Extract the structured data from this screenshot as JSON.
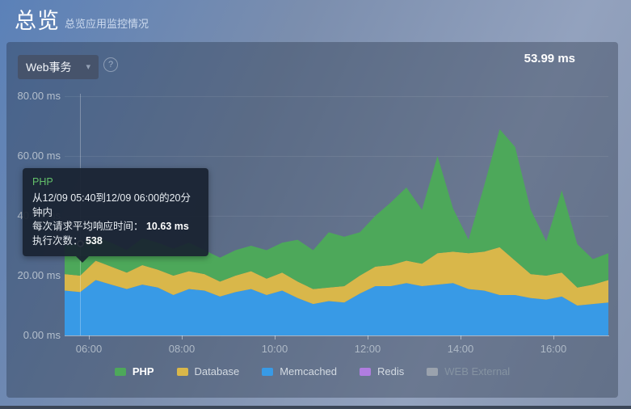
{
  "header": {
    "title": "总览",
    "subtitle": "总览应用监控情况"
  },
  "toolbar": {
    "dropdown_label": "Web事务",
    "dropdown_caret": "▾",
    "help_symbol": "?",
    "current_value": "53.99 ms"
  },
  "tooltip": {
    "series_label": "PHP",
    "range_text": "从12/09 05:40到12/09 06:00的20分钟内",
    "resp_label": "每次请求平均响应时间： ",
    "resp_value": "10.63 ms",
    "count_label": "执行次数： ",
    "count_value": "538"
  },
  "chart_data": {
    "type": "area",
    "stacked": true,
    "unit": "ms",
    "ylim": [
      0,
      80
    ],
    "grid": "horizontal",
    "legend_position": "bottom",
    "y_tick_labels": [
      "0.00 ms",
      "20.00 ms",
      "40.00 ms",
      "60.00 ms",
      "80.00 ms"
    ],
    "x_tick_labels": [
      "06:00",
      "08:00",
      "10:00",
      "12:00",
      "14:00",
      "16:00"
    ],
    "x_times": [
      "05:30",
      "05:50",
      "06:10",
      "06:30",
      "06:50",
      "07:10",
      "07:30",
      "07:50",
      "08:10",
      "08:30",
      "08:50",
      "09:10",
      "09:30",
      "09:50",
      "10:10",
      "10:30",
      "10:50",
      "11:10",
      "11:30",
      "11:50",
      "12:10",
      "12:30",
      "12:50",
      "13:10",
      "13:30",
      "13:50",
      "14:10",
      "14:30",
      "14:50",
      "15:10",
      "15:30",
      "15:50",
      "16:10",
      "16:30",
      "16:50",
      "17:10"
    ],
    "stack_order": [
      "Memcached",
      "Database",
      "PHP"
    ],
    "series": [
      {
        "name": "PHP",
        "color": "#4da85a",
        "values": [
          9.5,
          10.63,
          8,
          8,
          7.5,
          9,
          9,
          9,
          9.5,
          8,
          8,
          8.5,
          8.5,
          9.5,
          10,
          14,
          13,
          18.5,
          16.5,
          14.5,
          17,
          21,
          24.5,
          18,
          32.5,
          14.5,
          4.5,
          22,
          39.5,
          38,
          21.5,
          11.5,
          27.5,
          14.5,
          8.5,
          9
        ]
      },
      {
        "name": "Database",
        "color": "#d9b74a",
        "values": [
          5.5,
          5.5,
          6.5,
          6,
          5.5,
          6.5,
          6,
          6.5,
          6,
          5.5,
          5,
          5.5,
          6,
          5.5,
          6,
          5.5,
          5,
          4.5,
          5.5,
          6,
          6.5,
          7,
          7.5,
          7.5,
          10.5,
          10.5,
          12,
          13,
          16,
          11.5,
          8,
          8,
          8,
          6,
          6.5,
          7.5
        ]
      },
      {
        "name": "Memcached",
        "color": "#389ae6",
        "values": [
          15,
          14.5,
          18.5,
          17,
          15.5,
          17,
          16,
          13.5,
          15.5,
          15,
          13,
          14.5,
          15.5,
          13.5,
          15,
          12.5,
          10.5,
          11.5,
          11,
          14,
          16.5,
          16.5,
          17.5,
          16.5,
          17,
          17.5,
          15.5,
          15,
          13.5,
          13.5,
          12.5,
          12,
          13,
          10,
          10.5,
          11
        ]
      },
      {
        "name": "Redis",
        "color": "#b07de0",
        "values": []
      },
      {
        "name": "WEB External",
        "color": "#9aa2ad",
        "values": []
      }
    ],
    "hover_point": {
      "series": "PHP",
      "x_index": 1,
      "value_ms": 10.63,
      "count": 538,
      "stack_total_ms": 30.63
    }
  }
}
